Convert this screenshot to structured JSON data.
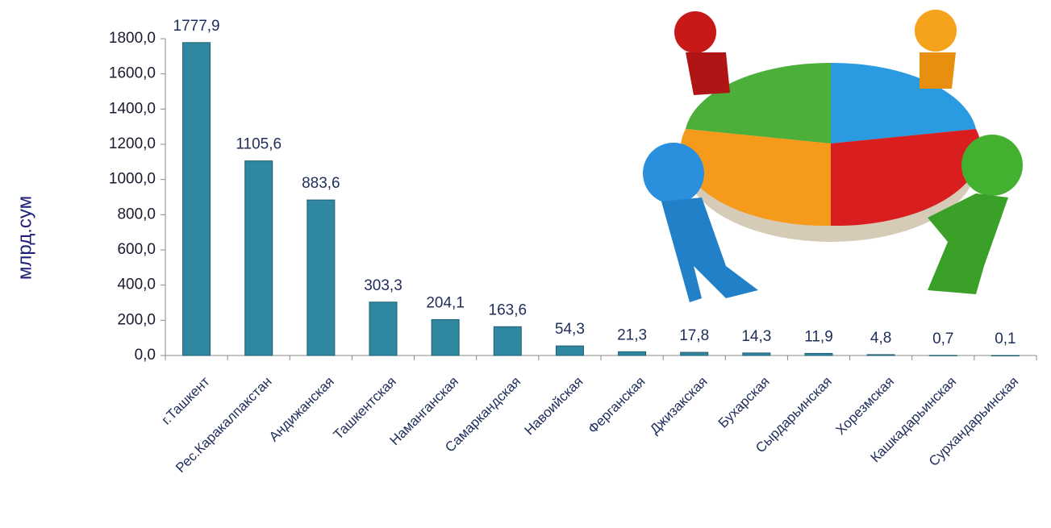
{
  "chart_data": {
    "type": "bar",
    "y_label": "млрд.сум",
    "categories": [
      "г.Ташкент",
      "Рес.Каракалпакстан",
      "Андижанская",
      "Ташкентская",
      "Наманганская",
      "Самаркандская",
      "Навоийская",
      "Ферганская",
      "Джизакская",
      "Бухарская",
      "Сырдарьинская",
      "Хорезмская",
      "Кашкадарьинская",
      "Сурхандарьинская"
    ],
    "values": [
      1777.9,
      1105.6,
      883.6,
      303.3,
      204.1,
      163.6,
      54.3,
      21.3,
      17.8,
      14.3,
      11.9,
      4.8,
      0.7,
      0.1
    ],
    "value_labels": [
      "1777,9",
      "1105,6",
      "883,6",
      "303,3",
      "204,1",
      "163,6",
      "54,3",
      "21,3",
      "17,8",
      "14,3",
      "11,9",
      "4,8",
      "0,7",
      "0,1"
    ],
    "color": "#2f87a0",
    "ylim": [
      0,
      1800
    ],
    "yticks": [
      {
        "value": 0,
        "label": "0,0"
      },
      {
        "value": 200,
        "label": "200,0"
      },
      {
        "value": 400,
        "label": "400,0"
      },
      {
        "value": 600,
        "label": "600,0"
      },
      {
        "value": 800,
        "label": "800,0"
      },
      {
        "value": 1000,
        "label": "1000,0"
      },
      {
        "value": 1200,
        "label": "1200,0"
      },
      {
        "value": 1400,
        "label": "1400,0"
      },
      {
        "value": 1600,
        "label": "1600,0"
      },
      {
        "value": 1800,
        "label": "1800,0"
      }
    ]
  }
}
